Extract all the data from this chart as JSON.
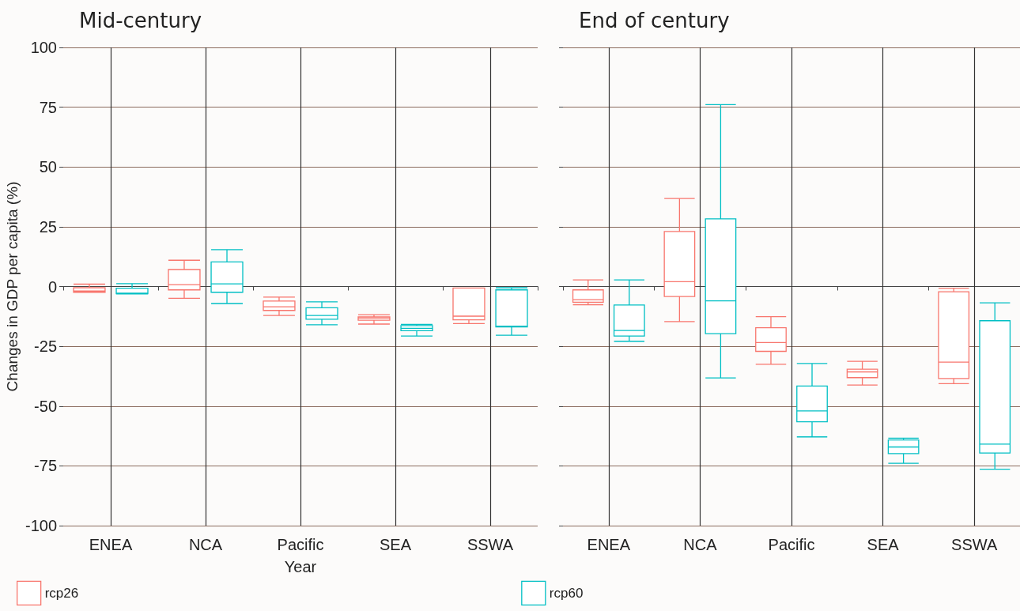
{
  "chart_data": [
    {
      "type": "box",
      "title": "Mid-century",
      "xlabel": "Year",
      "ylabel": "Changes in GDP per capita (%)",
      "categories": [
        "ENEA",
        "NCA",
        "Pacific",
        "SEA",
        "SSWA"
      ],
      "ylim": [
        -100,
        100
      ],
      "yticks": [
        -100,
        -75,
        -50,
        -25,
        0,
        25,
        50,
        75,
        100
      ],
      "grid": true,
      "legend": "bottom",
      "series": [
        {
          "name": "rcp26",
          "color": "#f8766d",
          "boxes": [
            {
              "low": -2.4,
              "q1": -2.4,
              "median": -1.9,
              "q3": -0.5,
              "high": 1
            },
            {
              "low": -4.9,
              "q1": -1.4,
              "median": 0.8,
              "q3": 7.1,
              "high": 11
            },
            {
              "low": -12.1,
              "q1": -10,
              "median": -8.5,
              "q3": -6.1,
              "high": -4.4
            },
            {
              "low": -15.7,
              "q1": -14.1,
              "median": -13.2,
              "q3": -12.7,
              "high": -11.8
            },
            {
              "low": -15.5,
              "q1": -13.9,
              "median": -12.4,
              "q3": -0.6,
              "high": -0.6
            }
          ]
        },
        {
          "name": "rcp60",
          "color": "#00bfc4",
          "boxes": [
            {
              "low": -3.1,
              "q1": -3,
              "median": -2.8,
              "q3": -0.7,
              "high": 1.2
            },
            {
              "low": -7.1,
              "q1": -2.4,
              "median": 1.1,
              "q3": 10.3,
              "high": 15.4
            },
            {
              "low": -16,
              "q1": -13.7,
              "median": -12.1,
              "q3": -8.9,
              "high": -6.4
            },
            {
              "low": -20.7,
              "q1": -18.5,
              "median": -17.5,
              "q3": -16.3,
              "high": -15.8
            },
            {
              "low": -20.4,
              "q1": -16.9,
              "median": -16.6,
              "q3": -1.4,
              "high": -0.5
            }
          ]
        }
      ]
    },
    {
      "type": "box",
      "title": "End of century",
      "categories": [
        "ENEA",
        "NCA",
        "Pacific",
        "SEA",
        "SSWA"
      ],
      "ylim": [
        -100,
        100
      ],
      "yticks": [
        -100,
        -75,
        -50,
        -25,
        0,
        25,
        50,
        75,
        100
      ],
      "grid": true,
      "tick_labels": "x",
      "series": [
        {
          "color": "#f8766d",
          "boxes": [
            {
              "low": -7.6,
              "q1": -6.6,
              "median": -5.5,
              "q3": -1.4,
              "high": 2.8
            },
            {
              "low": -14.7,
              "q1": -4.2,
              "median": 2,
              "q3": 23,
              "high": 36.8
            },
            {
              "low": -32.5,
              "q1": -27.1,
              "median": -23.4,
              "q3": -17.2,
              "high": -12.6
            },
            {
              "low": -41.2,
              "q1": -38.1,
              "median": -35.7,
              "q3": -34.6,
              "high": -31.3
            },
            {
              "low": -40.6,
              "q1": -38.5,
              "median": -31.6,
              "q3": -2.2,
              "high": -0.7
            }
          ]
        },
        {
          "color": "#00bfc4",
          "boxes": [
            {
              "low": -22.9,
              "q1": -20.7,
              "median": -18.4,
              "q3": -7.7,
              "high": 2.8
            },
            {
              "low": -38.2,
              "q1": -19.7,
              "median": -6,
              "q3": 28.3,
              "high": 76.1
            },
            {
              "low": -62.9,
              "q1": -56.6,
              "median": -52,
              "q3": -41.6,
              "high": -32.2
            },
            {
              "low": -73.9,
              "q1": -69.9,
              "median": -67.1,
              "q3": -64.2,
              "high": -63.4
            },
            {
              "low": -76.4,
              "q1": -69.6,
              "median": -65.9,
              "q3": -14.3,
              "high": -6.8
            }
          ]
        }
      ]
    }
  ]
}
